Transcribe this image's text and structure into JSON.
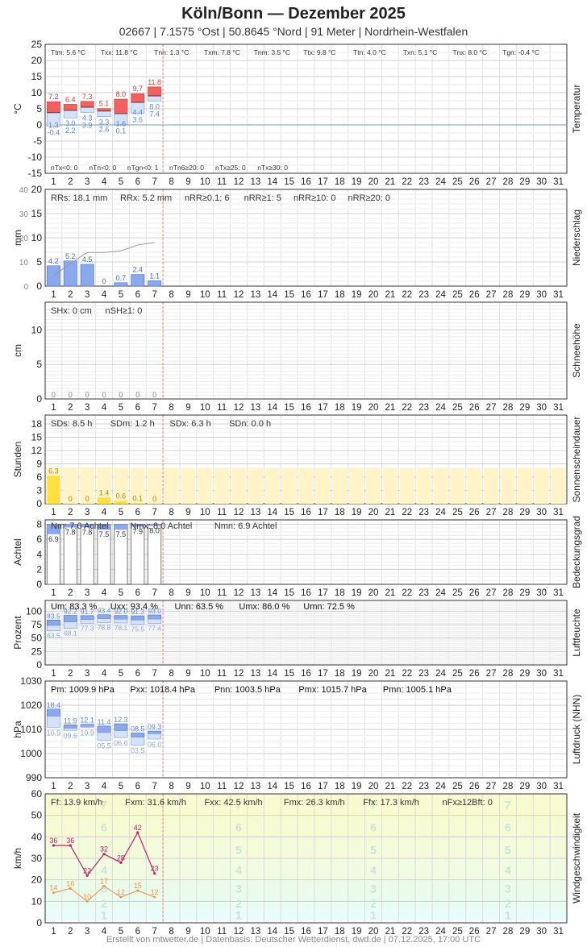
{
  "header": {
    "title": "Köln/Bonn  —  Dezember 2025",
    "subtitle": "02667  |  7.1575 °Ost  |  50.8645 °Nord  |  91 Meter  |  Nordrhein-Westfalen"
  },
  "footer": {
    "text": "Erstellt von mtwetter.de | Datenbasis: Deutscher Wetterdienst, dwd.de | 07.12.2025, 17:00 UTC"
  },
  "colors": {
    "tmax": "#f36060",
    "tmin": "#9ab8ee",
    "rain": "#8aa8ee",
    "sun": "#ffe040",
    "sun_bg": "#fff4c8",
    "cloud_edge": "#555555",
    "wind_max": "#c0206a",
    "wind_mean": "#f39050",
    "today_line": "#f08080"
  },
  "chart_data": [
    {
      "id": "temperatur",
      "type": "bar",
      "ylabel": "°C",
      "side_label": "Temperatur",
      "ylim": [
        -15,
        25
      ],
      "yticks": [
        -15,
        -10,
        -5,
        0,
        5,
        10,
        15,
        20,
        25
      ],
      "x": [
        1,
        2,
        3,
        4,
        5,
        6,
        7,
        8,
        9,
        10,
        11,
        12,
        13,
        14,
        15,
        16,
        17,
        18,
        19,
        20,
        21,
        22,
        23,
        24,
        25,
        26,
        27,
        28,
        29,
        30,
        31
      ],
      "tmax": [
        7.2,
        6.4,
        7.3,
        5.1,
        8.0,
        9.7,
        11.8
      ],
      "tmean": [
        3.8,
        4.5,
        5.5,
        4.3,
        3.5,
        7.0,
        9.0
      ],
      "tmin": [
        -0.4,
        2.2,
        3.9,
        2.6,
        0.1,
        3.6,
        7.4
      ],
      "max_labels": [
        "7.2",
        "6.4",
        "7.3",
        "5.1",
        "8.0",
        "9.7",
        "11.8"
      ],
      "mid_labels": [
        "1.3",
        "3.0",
        "4.3",
        "3.3",
        "1.6",
        "4.4",
        "8.0"
      ],
      "min_labels": [
        "-0.4",
        "2.2",
        "3.9",
        "2.6",
        "0.1",
        "3.6",
        "7.4"
      ],
      "stats_top": [
        "Ttm: 5.6 °C",
        "Txx: 11.8 °C",
        "Tnn: 1.3 °C",
        "Txm: 7.8 °C",
        "Tnm: 3.5 °C",
        "Ttx: 9.8 °C",
        "Ttn: 4.0 °C",
        "Txn: 5.1 °C",
        "Tnx: 8.0 °C",
        "Tgn: -0.4 °C"
      ],
      "stats_bottom": [
        "nTx<0: 0",
        "nTn<0: 0",
        "nTgn<0: 1",
        "nTn6≥20: 0",
        "nTx≥25: 0",
        "nTx≥30: 0"
      ]
    },
    {
      "id": "niederschlag",
      "type": "bar",
      "ylabel": "mm",
      "side_label": "Niederschlag",
      "ylim": [
        0,
        20
      ],
      "yticks": [
        0,
        5,
        10,
        15,
        20
      ],
      "cumulative_ticks": [
        0,
        10,
        20,
        30,
        40
      ],
      "values": [
        4.2,
        5.2,
        4.5,
        0,
        0.7,
        2.4,
        1.1
      ],
      "labels": [
        "4.2",
        "5.2",
        "4.5",
        "0",
        "0.7",
        "2.4",
        "1.1"
      ],
      "cumulative": [
        4.2,
        9.4,
        13.9,
        13.9,
        14.6,
        17.0,
        18.1
      ],
      "stats": [
        "RRs: 18.1 mm",
        "RRx: 5.2 mm",
        "nRR≥0.1: 6",
        "nRR≥1: 5",
        "nRR≥10: 0",
        "nRR≥20: 0"
      ]
    },
    {
      "id": "schneehoehe",
      "type": "bar",
      "ylabel": "cm",
      "side_label": "Schneehöhe",
      "ylim": [
        0,
        14
      ],
      "yticks": [
        0,
        5,
        10
      ],
      "values": [
        0,
        0,
        0,
        0,
        0,
        0,
        0
      ],
      "labels": [
        "0",
        "0",
        "0",
        "0",
        "0",
        "0",
        "0"
      ],
      "stats": [
        "SHx: 0 cm",
        "nSH≥1: 0"
      ]
    },
    {
      "id": "sonnenschein",
      "type": "bar",
      "ylabel": "Stunden",
      "side_label": "Sonnenscheindauer",
      "ylim": [
        0,
        20
      ],
      "yticks": [
        0,
        3,
        6,
        9,
        12,
        15,
        18
      ],
      "values": [
        6.3,
        0,
        0,
        1.4,
        0.6,
        0.1,
        0
      ],
      "labels": [
        "6.3",
        "0",
        "0",
        "1.4",
        "0.6",
        "0.1",
        "0"
      ],
      "possible": [
        8.2,
        8.2,
        8.2,
        8.2,
        8.1,
        8.1,
        8.1,
        8.1,
        8.1,
        8.1,
        8.0,
        8.0,
        8.0,
        8.0,
        8.0,
        8.0,
        8.0,
        8.0,
        8.0,
        8.0,
        8.0,
        8.0,
        8.0,
        8.0,
        8.0,
        8.0,
        8.0,
        8.0,
        8.1,
        8.1,
        8.1
      ],
      "stats": [
        "SDs: 8.5 h",
        "SDm: 1.2 h",
        "SDx: 6.3 h",
        "SDn: 0.0 h"
      ]
    },
    {
      "id": "bedeckung",
      "type": "bar",
      "ylabel": "Achtel",
      "side_label": "Bedeckungsgrad",
      "ylim": [
        0,
        8.6
      ],
      "yticks": [
        0,
        2,
        4,
        6,
        8
      ],
      "mean": [
        6.9,
        7.8,
        7.8,
        7.5,
        7.5,
        7.9,
        8.0
      ],
      "labels": [
        "6.9",
        "7.8",
        "7.8",
        "7.5",
        "7.5",
        "7.9",
        "8.0"
      ],
      "stats": [
        "Nm: 7.6 Achtel",
        "Nmx: 8.0 Achtel",
        "Nmn: 6.9 Achtel"
      ]
    },
    {
      "id": "luftfeuchte",
      "type": "bar",
      "ylabel": "Prozent",
      "side_label": "Luftfeuchte",
      "ylim": [
        0,
        120
      ],
      "yticks": [
        0,
        25,
        50,
        75,
        100
      ],
      "max": [
        83.5,
        92.2,
        91.7,
        93.4,
        92.0,
        91.3,
        93.0
      ],
      "min": [
        63.5,
        68.1,
        77.3,
        78.8,
        78.1,
        75.5,
        77.4
      ],
      "max_labels": [
        "83.5",
        "92.2",
        "91.7",
        "93.4",
        "92.0",
        "91.3",
        "93.0"
      ],
      "min_labels": [
        "63.5",
        "68.1",
        "77.3",
        "78.8",
        "78.1",
        "75.5",
        "77.4"
      ],
      "stats": [
        "Um: 83.3 %",
        "Uxx: 93.4 %",
        "Unn: 63.5 %",
        "Umx: 86.0 %",
        "Umn: 72.5 %"
      ]
    },
    {
      "id": "luftdruck",
      "type": "bar",
      "ylabel": "hPa",
      "side_label": "Luftdruck (NHN)",
      "ylim": [
        990,
        1030
      ],
      "yticks": [
        990,
        1000,
        1010,
        1020,
        1030
      ],
      "max": [
        1018.4,
        1011.9,
        1012.1,
        1011.4,
        1012.3,
        1008.5,
        1009.3
      ],
      "mean": [
        1015.5,
        1010.5,
        1011.2,
        1008.7,
        1009.5,
        1006.8,
        1008.2
      ],
      "min": [
        1010.9,
        1009.6,
        1010.9,
        1005.5,
        1006.6,
        1003.5,
        1006.0
      ],
      "max_labels": [
        "18.4",
        "11.9",
        "12.1",
        "11.4",
        "12.3",
        "08.5",
        "09.3"
      ],
      "min_labels": [
        "10.9",
        "09.6",
        "10.9",
        "05.5",
        "06.6",
        "03.5",
        "06.0"
      ],
      "stats": [
        "Pm: 1009.9 hPa",
        "Pxx: 1018.4 hPa",
        "Pnn: 1003.5 hPa",
        "Pmx: 1015.7 hPa",
        "Pmn: 1005.1 hPa"
      ]
    },
    {
      "id": "wind",
      "type": "line",
      "ylabel": "km/h",
      "side_label": "Windgeschwindigkeit",
      "ylim": [
        0,
        60
      ],
      "yticks": [
        0,
        10,
        20,
        30,
        40,
        50,
        60
      ],
      "fx": [
        36,
        36,
        22,
        32,
        28,
        42,
        23
      ],
      "ff": [
        14,
        16,
        10,
        17,
        12,
        15,
        12
      ],
      "bft_labels": [
        "1",
        "2",
        "3",
        "4",
        "5",
        "6",
        "7"
      ],
      "bft_values": [
        1,
        2,
        3,
        4,
        5,
        6,
        7
      ],
      "bft_bounds": [
        1,
        6,
        12,
        20,
        29,
        39,
        50
      ],
      "stats": [
        "Ff: 13.9 km/h",
        "Fxm: 31.6 km/h",
        "Fxx: 42.5 km/h",
        "Fmx: 26.3 km/h",
        "Ffx: 17.3 km/h",
        "nFx≥12Bft: 0"
      ]
    }
  ]
}
